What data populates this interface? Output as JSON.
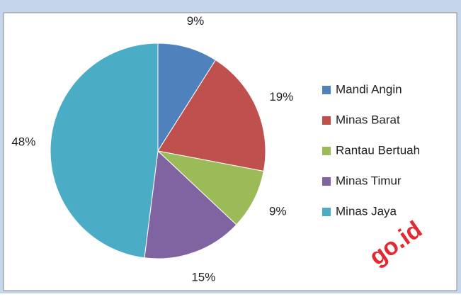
{
  "chart_data": {
    "type": "pie",
    "categories": [
      "Mandi Angin",
      "Minas Barat",
      "Rantau Bertuah",
      "Minas Timur",
      "Minas Jaya"
    ],
    "values": [
      9,
      19,
      9,
      15,
      48
    ],
    "value_labels": [
      "9%",
      "19%",
      "9%",
      "15%",
      "48%"
    ],
    "colors": [
      "#4f81bd",
      "#c0504d",
      "#9bbb59",
      "#8064a2",
      "#4bacc6"
    ],
    "legend": "right",
    "watermark": "go.id"
  }
}
